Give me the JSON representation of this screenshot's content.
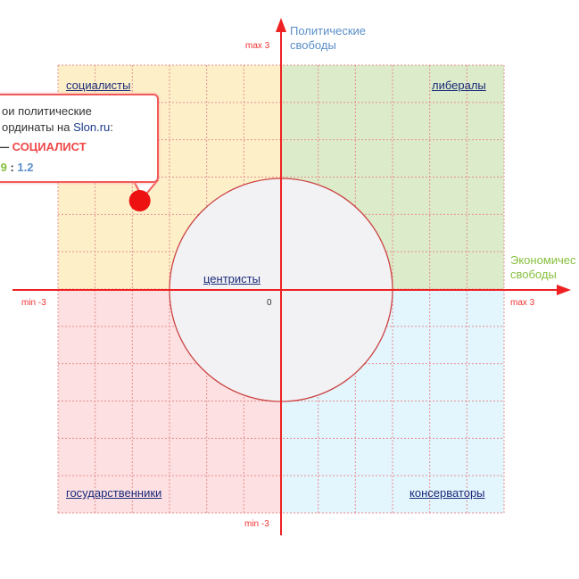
{
  "axes": {
    "x_title_line1": "Экономичес",
    "x_title_line2": "свободы",
    "y_title_line1": "Политические",
    "y_title_line2": "свободы",
    "x_min_label": "min -3",
    "x_max_label": "max 3",
    "y_max_label": "max 3",
    "y_min_label": "min -3",
    "origin_label": "0",
    "range": [
      -3,
      3
    ]
  },
  "quadrants": {
    "top_left": "социалисты",
    "top_right": "либералы",
    "bottom_left": "государственники",
    "bottom_right": "консерваторы",
    "center": "центристы"
  },
  "colors": {
    "top_left": "#fdf0c9",
    "top_right": "#dcebc9",
    "bottom_left": "#fde0e2",
    "bottom_right": "#e3f5fd",
    "center": "#f2f2f4",
    "axis": "#ee2222"
  },
  "center_radius_units": 1.5,
  "point": {
    "x": -1.9,
    "y": 1.2
  },
  "callout": {
    "line1": "ои политические",
    "line2_text": "ординаты на ",
    "line2_link": "Slon.ru",
    "line2_end": ":",
    "line3_dash": "— ",
    "line3_result": "СОЦИАЛИСТ",
    "x_value": ".9",
    "separator": " : ",
    "y_value": "1.2"
  }
}
